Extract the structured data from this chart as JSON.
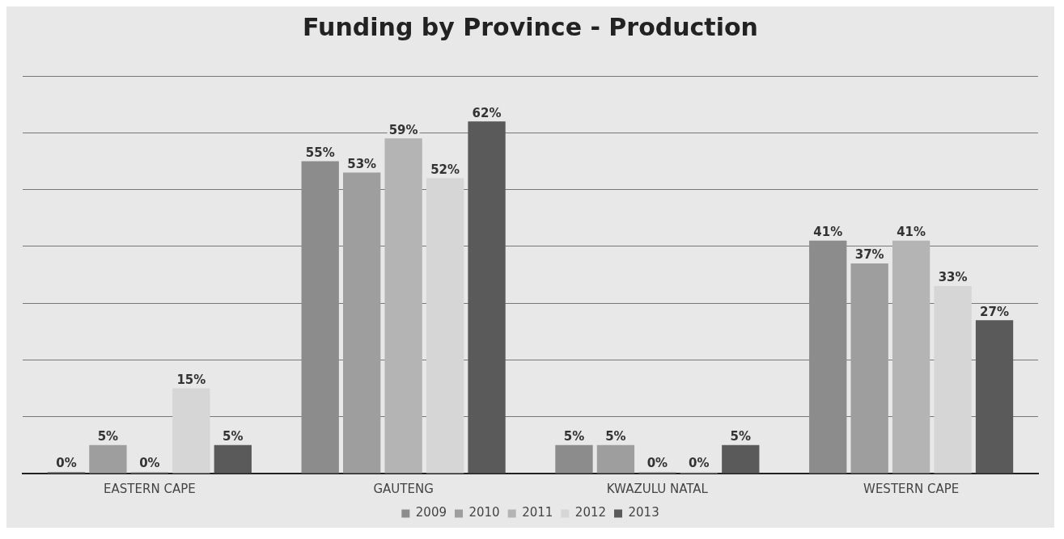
{
  "chart_data": {
    "type": "bar",
    "title": "Funding by Province - Production",
    "categories": [
      "EASTERN CAPE",
      "GAUTENG",
      "KWAZULU NATAL",
      "WESTERN CAPE"
    ],
    "series": [
      {
        "name": "2009",
        "color": "#8c8c8c",
        "values": [
          0,
          55,
          5,
          41
        ],
        "value_labels": [
          "0%",
          "55%",
          "5%",
          "41%"
        ]
      },
      {
        "name": "2010",
        "color": "#9e9e9e",
        "values": [
          5,
          53,
          5,
          37
        ],
        "value_labels": [
          "5%",
          "53%",
          "5%",
          "37%"
        ]
      },
      {
        "name": "2011",
        "color": "#b4b4b4",
        "values": [
          0,
          59,
          0,
          41
        ],
        "value_labels": [
          "0%",
          "59%",
          "0%",
          "41%"
        ]
      },
      {
        "name": "2012",
        "color": "#d6d6d6",
        "values": [
          15,
          52,
          0,
          33
        ],
        "value_labels": [
          "15%",
          "52%",
          "0%",
          "33%"
        ]
      },
      {
        "name": "2013",
        "color": "#5a5a5a",
        "values": [
          5,
          62,
          5,
          27
        ],
        "value_labels": [
          "5%",
          "62%",
          "5%",
          "27%"
        ]
      }
    ],
    "grid": "y",
    "legend": "bottom",
    "tick_labels": "x"
  }
}
